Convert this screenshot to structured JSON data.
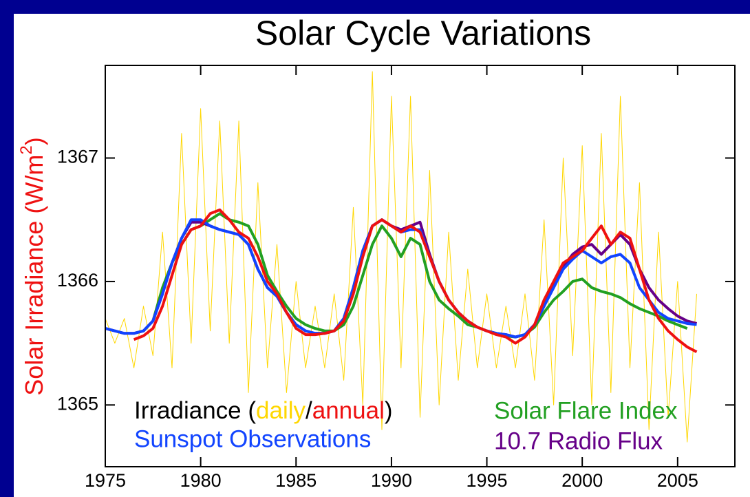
{
  "chart_data": {
    "type": "line",
    "title": "Solar Cycle Variations",
    "y_label": [
      "Solar Irradiance (W/m",
      "2",
      ")"
    ],
    "legend_text": [
      "Irradiance (",
      "/",
      ")"
    ],
    "x": [
      1975,
      1975.5,
      1976,
      1976.5,
      1977,
      1977.5,
      1978,
      1978.5,
      1979,
      1979.5,
      1980,
      1980.5,
      1981,
      1981.5,
      1982,
      1982.5,
      1983,
      1983.5,
      1984,
      1984.5,
      1985,
      1985.5,
      1986,
      1986.5,
      1987,
      1987.5,
      1988,
      1988.5,
      1989,
      1989.5,
      1990,
      1990.5,
      1991,
      1991.5,
      1992,
      1992.5,
      1993,
      1993.5,
      1994,
      1994.5,
      1995,
      1995.5,
      1996,
      1996.5,
      1997,
      1997.5,
      1998,
      1998.5,
      1999,
      1999.5,
      2000,
      2000.5,
      2001,
      2001.5,
      2002,
      2002.5,
      2003,
      2003.5,
      2004,
      2004.5,
      2005,
      2005.5,
      2006
    ],
    "xlim": [
      1975,
      2008
    ],
    "xticks": [
      1975,
      1980,
      1985,
      1990,
      1995,
      2000,
      2005
    ],
    "ylim": [
      1364.5,
      1367.75
    ],
    "yticks": [
      1365,
      1366,
      1367
    ],
    "series": [
      {
        "name": "daily",
        "color": "#ffd700",
        "width": 1,
        "values": [
          1365.7,
          1365.5,
          1365.7,
          1365.3,
          1365.8,
          1365.4,
          1366.4,
          1365.3,
          1367.2,
          1365.5,
          1367.4,
          1365.6,
          1367.3,
          1365.5,
          1367.3,
          1365.1,
          1366.8,
          1365.3,
          1366.3,
          1365.1,
          1366.0,
          1365.3,
          1365.8,
          1365.3,
          1365.9,
          1365.2,
          1366.6,
          1365.0,
          1367.7,
          1364.8,
          1367.5,
          1365.3,
          1367.5,
          1364.9,
          1366.9,
          1365.0,
          1366.4,
          1365.2,
          1366.1,
          1365.3,
          1365.9,
          1365.3,
          1365.8,
          1365.3,
          1365.9,
          1365.2,
          1366.5,
          1365.0,
          1367.0,
          1365.4,
          1367.1,
          1365.0,
          1367.2,
          1365.1,
          1367.5,
          1365.3,
          1366.8,
          1364.8,
          1366.4,
          1364.9,
          1366.0,
          1364.7,
          1365.9
        ]
      },
      {
        "name": "Solar Flare Index",
        "color": "#22a022",
        "width": 4,
        "values": [
          null,
          null,
          null,
          1365.58,
          1365.6,
          1365.68,
          1365.95,
          1366.15,
          1366.3,
          1366.42,
          1366.45,
          1366.5,
          1366.55,
          1366.5,
          1366.48,
          1366.45,
          1366.3,
          1366.05,
          1365.92,
          1365.8,
          1365.7,
          1365.65,
          1365.62,
          1365.6,
          1365.6,
          1365.65,
          1365.8,
          1366.05,
          1366.3,
          1366.45,
          1366.35,
          1366.2,
          1366.35,
          1366.3,
          1366.0,
          1365.85,
          1365.78,
          1365.72,
          1365.65,
          1365.63,
          1365.6,
          1365.58,
          1365.56,
          1365.55,
          1365.57,
          1365.63,
          1365.75,
          1365.85,
          1365.92,
          1366.0,
          1366.02,
          1365.95,
          1365.92,
          1365.9,
          1365.87,
          1365.82,
          1365.78,
          1365.75,
          1365.72,
          1365.68,
          1365.65,
          1365.62,
          null
        ]
      },
      {
        "name": "10.7 Radio Flux",
        "color": "#660088",
        "width": 4,
        "values": [
          1365.62,
          1365.6,
          1365.58,
          1365.58,
          1365.6,
          1365.68,
          1365.9,
          1366.15,
          1366.35,
          1366.48,
          1366.48,
          1366.45,
          1366.42,
          1366.4,
          1366.38,
          1366.3,
          1366.1,
          1365.95,
          1365.88,
          1365.75,
          1365.65,
          1365.6,
          1365.58,
          1365.58,
          1365.6,
          1365.7,
          1365.95,
          1366.25,
          1366.45,
          1366.5,
          1366.45,
          1366.42,
          1366.45,
          1366.48,
          1366.22,
          1366.0,
          1365.85,
          1365.75,
          1365.68,
          1365.63,
          1365.6,
          1365.58,
          1365.57,
          1365.55,
          1365.57,
          1365.65,
          1365.8,
          1365.97,
          1366.12,
          1366.22,
          1366.28,
          1366.3,
          1366.22,
          1366.3,
          1366.38,
          1366.3,
          1366.1,
          1365.95,
          1365.85,
          1365.78,
          1365.72,
          1365.68,
          1365.66
        ]
      },
      {
        "name": "Sunspot Observations",
        "color": "#1144ff",
        "width": 4,
        "values": [
          1365.62,
          1365.6,
          1365.58,
          1365.58,
          1365.6,
          1365.68,
          1365.9,
          1366.15,
          1366.35,
          1366.5,
          1366.5,
          1366.45,
          1366.42,
          1366.4,
          1366.38,
          1366.3,
          1366.1,
          1365.95,
          1365.88,
          1365.75,
          1365.65,
          1365.6,
          1365.58,
          1365.58,
          1365.6,
          1365.7,
          1365.95,
          1366.25,
          1366.45,
          1366.5,
          1366.45,
          1366.4,
          1366.42,
          1366.42,
          1366.2,
          1366.0,
          1365.85,
          1365.75,
          1365.68,
          1365.63,
          1365.6,
          1365.58,
          1365.57,
          1365.55,
          1365.57,
          1365.65,
          1365.8,
          1365.95,
          1366.1,
          1366.18,
          1366.25,
          1366.2,
          1366.15,
          1366.2,
          1366.22,
          1366.15,
          1365.95,
          1365.85,
          1365.75,
          1365.7,
          1365.68,
          1365.66,
          1365.65
        ]
      },
      {
        "name": "annual",
        "color": "#ee1111",
        "width": 4,
        "values": [
          null,
          null,
          null,
          1365.53,
          1365.56,
          1365.62,
          1365.8,
          1366.05,
          1366.3,
          1366.42,
          1366.45,
          1366.55,
          1366.58,
          1366.5,
          1366.4,
          1366.35,
          1366.2,
          1366.0,
          1365.9,
          1365.75,
          1365.62,
          1365.57,
          1365.57,
          1365.58,
          1365.6,
          1365.68,
          1365.9,
          1366.2,
          1366.45,
          1366.5,
          1366.45,
          1366.4,
          1366.45,
          1366.4,
          1366.2,
          1366.0,
          1365.85,
          1365.75,
          1365.68,
          1365.63,
          1365.6,
          1365.57,
          1365.55,
          1365.5,
          1365.55,
          1365.65,
          1365.85,
          1366.0,
          1366.15,
          1366.2,
          1366.25,
          1366.35,
          1366.45,
          1366.3,
          1366.4,
          1366.35,
          1366.1,
          1365.85,
          1365.7,
          1365.6,
          1365.53,
          1365.47,
          1365.43
        ]
      }
    ]
  }
}
